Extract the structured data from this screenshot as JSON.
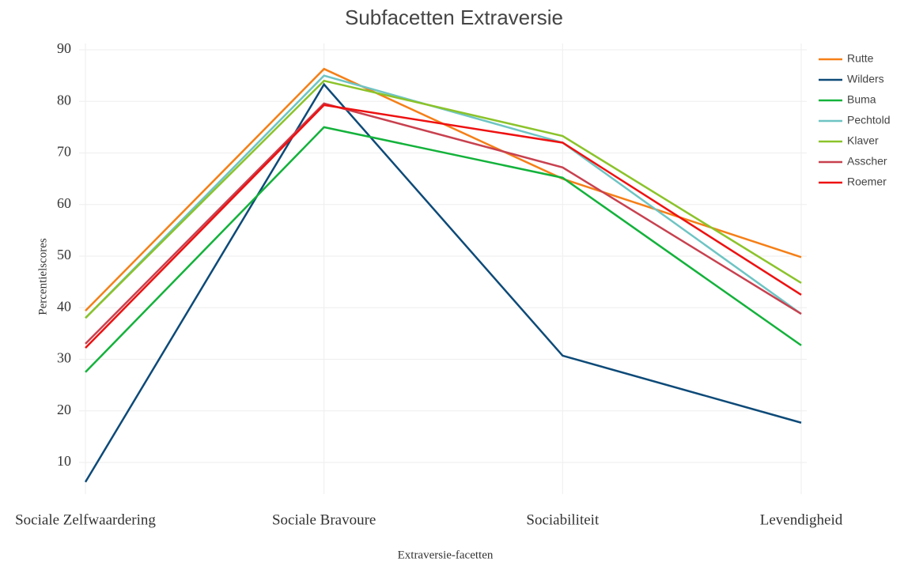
{
  "chart_data": {
    "type": "line",
    "title": "Subfacetten Extraversie",
    "x_label": "Extraversie-facetten",
    "y_label": "Percentielscores",
    "categories": [
      "Sociale Zelfwaardering",
      "Sociale Bravoure",
      "Sociabiliteit",
      "Levendigheid"
    ],
    "series": [
      {
        "name": "Rutte",
        "color": "#f57f17",
        "values": [
          39.4,
          86.3,
          65,
          49.8
        ]
      },
      {
        "name": "Wilders",
        "color": "#0d4a78",
        "values": [
          6.2,
          83.3,
          30.7,
          17.7
        ]
      },
      {
        "name": "Buma",
        "color": "#13b23b",
        "values": [
          27.5,
          75,
          65.2,
          32.7
        ]
      },
      {
        "name": "Pechtold",
        "color": "#6ec4c4",
        "values": [
          38,
          85,
          72,
          38.8
        ]
      },
      {
        "name": "Klaver",
        "color": "#8bc32a",
        "values": [
          38,
          84,
          73.3,
          44.8
        ]
      },
      {
        "name": "Asscher",
        "color": "#c8414f",
        "values": [
          33,
          79.6,
          67.2,
          38.8
        ]
      },
      {
        "name": "Roemer",
        "color": "#ee1111",
        "values": [
          32.2,
          79.3,
          72,
          42.5
        ]
      }
    ],
    "ylim": [
      5,
      92
    ],
    "yticks": [
      10,
      20,
      30,
      40,
      50,
      60,
      70,
      80,
      90
    ],
    "grid": true,
    "legend": "right"
  }
}
